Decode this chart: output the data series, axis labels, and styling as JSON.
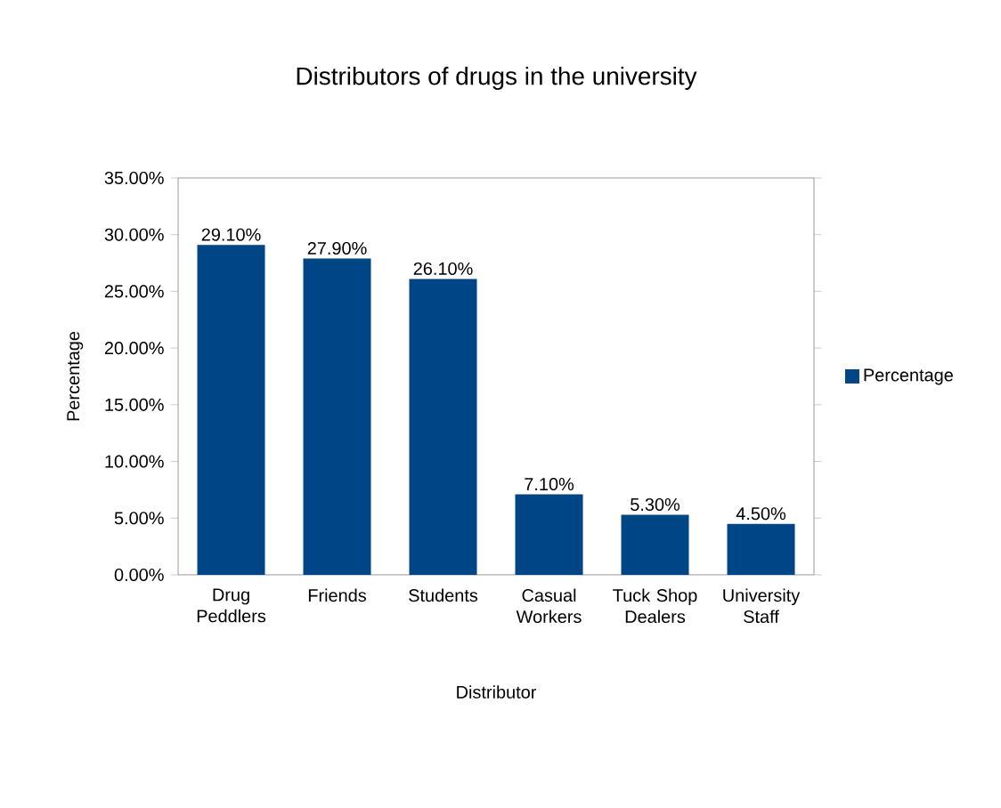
{
  "chart_data": {
    "type": "bar",
    "title": "Distributors of drugs in the university",
    "xlabel": "Distributor",
    "ylabel": "Percentage",
    "categories": [
      "Drug Peddlers",
      "Friends",
      "Students",
      "Casual Workers",
      "Tuck Shop Dealers",
      "University Staff"
    ],
    "series": [
      {
        "name": "Percentage",
        "color": "#004586",
        "values": [
          29.1,
          27.9,
          26.1,
          7.1,
          5.3,
          4.5
        ],
        "value_labels": [
          "29.10%",
          "27.90%",
          "26.10%",
          "7.10%",
          "5.30%",
          "4.50%"
        ]
      }
    ],
    "ylim": [
      0,
      35
    ],
    "yticks": [
      {
        "value": 0,
        "label": "0.00%"
      },
      {
        "value": 5,
        "label": "5.00%"
      },
      {
        "value": 10,
        "label": "10.00%"
      },
      {
        "value": 15,
        "label": "15.00%"
      },
      {
        "value": 20,
        "label": "20.00%"
      },
      {
        "value": 25,
        "label": "25.00%"
      },
      {
        "value": 30,
        "label": "30.00%"
      },
      {
        "value": 35,
        "label": "35.00%"
      }
    ],
    "legend": "right",
    "grid": false
  }
}
